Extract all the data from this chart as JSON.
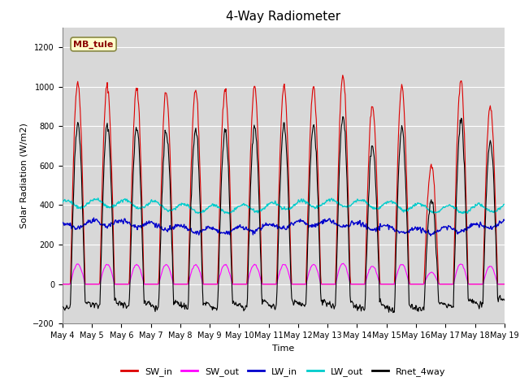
{
  "title": "4-Way Radiometer",
  "xlabel": "Time",
  "ylabel": "Solar Radiation (W/m2)",
  "annotation": "MB_tule",
  "annotation_color": "#8b0000",
  "annotation_bg": "#ffffcc",
  "annotation_edge": "#888844",
  "ylim": [
    -200,
    1300
  ],
  "yticks": [
    -200,
    0,
    200,
    400,
    600,
    800,
    1000,
    1200
  ],
  "total_days": 15,
  "colors": {
    "SW_in": "#dd0000",
    "SW_out": "#ff00ff",
    "LW_in": "#0000cc",
    "LW_out": "#00cccc",
    "Rnet_4way": "#000000"
  },
  "legend_labels": [
    "SW_in",
    "SW_out",
    "LW_in",
    "LW_out",
    "Rnet_4way"
  ],
  "background_color": "#d8d8d8",
  "grid_color": "#ffffff",
  "fig_bg": "#ffffff",
  "tick_fontsize": 7,
  "label_fontsize": 8,
  "title_fontsize": 11
}
